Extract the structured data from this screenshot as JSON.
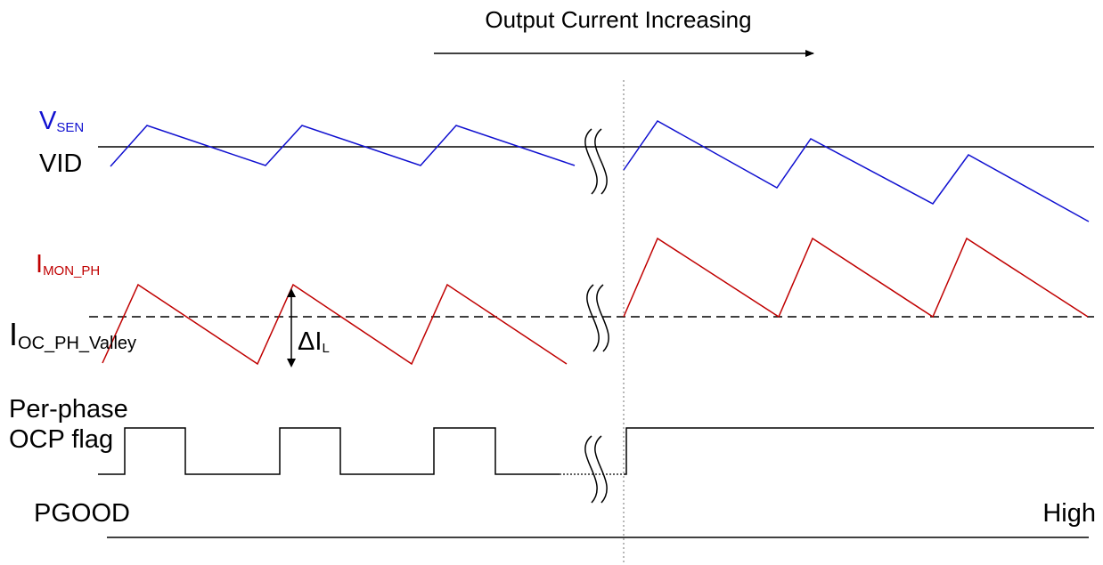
{
  "title": "Output Current Increasing",
  "signals": {
    "vsen": {
      "main": "V",
      "sub": "SEN",
      "color": "#1010d0"
    },
    "vid": {
      "label": "VID"
    },
    "imon": {
      "main": "I",
      "sub": "MON_PH",
      "color": "#c00000"
    },
    "ioc": {
      "main": "I",
      "sub": "OC_PH_Valley"
    },
    "delta": {
      "main": "ΔI",
      "sub": "L"
    },
    "ocp": {
      "line1": "Per-phase",
      "line2": "OCP flag"
    },
    "pgood": {
      "label": "PGOOD",
      "state": "High"
    }
  }
}
